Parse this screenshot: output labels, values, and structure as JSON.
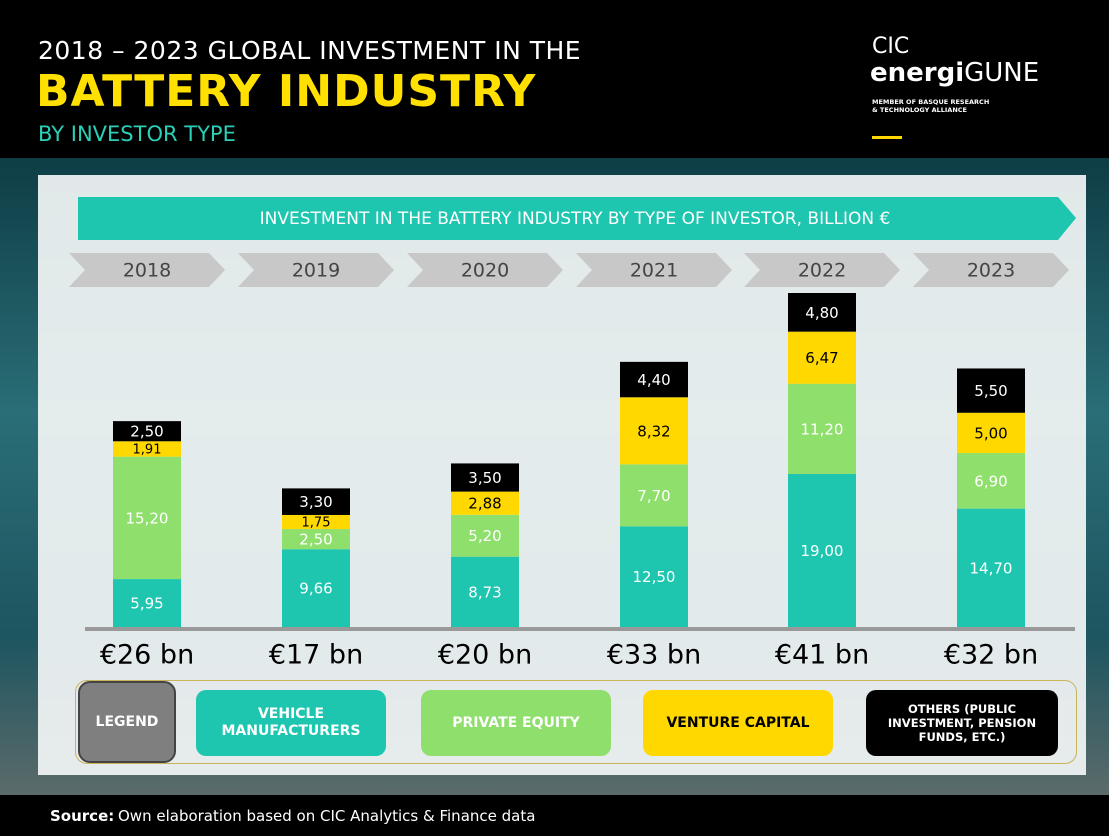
{
  "chart_data": {
    "type": "stacked-bar",
    "title_top": "2018 – 2023 GLOBAL INVESTMENT IN THE",
    "title": "BATTERY INDUSTRY",
    "title_sub": "BY INVESTOR TYPE",
    "subtitle": "INVESTMENT IN THE BATTERY INDUSTRY BY TYPE OF INVESTOR, BILLION €",
    "categories": [
      "2018",
      "2019",
      "2020",
      "2021",
      "2022",
      "2023"
    ],
    "series": [
      {
        "name": "VEHICLE MANUFACTURERS",
        "color": "#1ec6b0",
        "text_color": "#ffffff",
        "values": [
          5.95,
          9.66,
          8.73,
          12.5,
          19.0,
          14.7
        ],
        "value_labels": [
          "5,95",
          "9,66",
          "8,73",
          "12,50",
          "19,00",
          "14,70"
        ]
      },
      {
        "name": "PRIVATE EQUITY",
        "color": "#8fdf6c",
        "text_color": "#ffffff",
        "values": [
          15.2,
          2.5,
          5.2,
          7.7,
          11.2,
          6.9
        ],
        "value_labels": [
          "15,20",
          "2,50",
          "5,20",
          "7,70",
          "11,20",
          "6,90"
        ]
      },
      {
        "name": "VENTURE CAPITAL",
        "color": "#ffd800",
        "text_color": "#000000",
        "values": [
          1.91,
          1.75,
          2.88,
          8.32,
          6.47,
          5.0
        ],
        "value_labels": [
          "1,91",
          "1,75",
          "2,88",
          "8,32",
          "6,47",
          "5,00"
        ]
      },
      {
        "name": "OTHERS (PUBLIC INVESTMENT, PENSION FUNDS, ETC.)",
        "color": "#000000",
        "text_color": "#ffffff",
        "values": [
          2.5,
          3.3,
          3.5,
          4.4,
          4.8,
          5.5
        ],
        "value_labels": [
          "2,50",
          "3,30",
          "3,50",
          "4,40",
          "4,80",
          "5,50"
        ]
      }
    ],
    "totals": {
      "values": [
        26,
        17,
        20,
        33,
        41,
        32
      ],
      "value_labels": [
        "€26 bn",
        "€17 bn",
        "€20 bn",
        "€33 bn",
        "€41 bn",
        "€32 bn"
      ]
    },
    "legend_title": "LEGEND"
  },
  "logo": {
    "line1": "CIC",
    "bold": "energi",
    "light": "GUNE",
    "tagline": [
      "MEMBER OF BASQUE RESEARCH",
      "& TECHNOLOGY ALLIANCE"
    ]
  },
  "source": {
    "label": "Source:",
    "text": "Own elaboration based on CIC Analytics & Finance data"
  }
}
